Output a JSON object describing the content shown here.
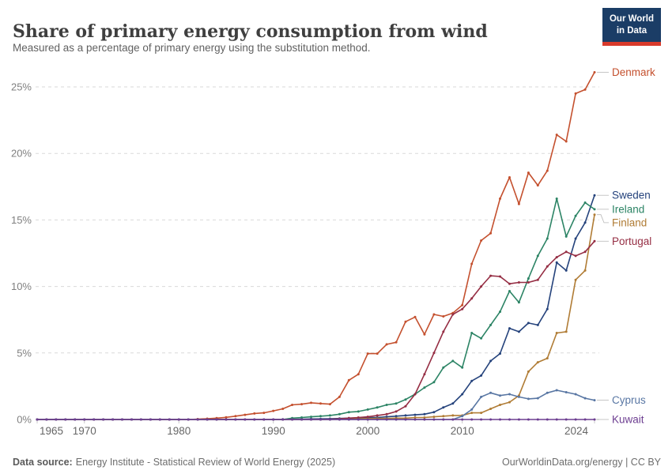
{
  "header": {
    "title": "Share of primary energy consumption from wind",
    "subtitle": "Measured as a percentage of primary energy using the substitution method.",
    "logo": {
      "line1": "Our World",
      "line2": "in Data",
      "bg_color": "#1b3d66",
      "bar_color": "#d93a2b"
    }
  },
  "footer": {
    "source_label": "Data source:",
    "source": "Energy Institute - Statistical Review of World Energy (2025)",
    "credit": "OurWorldinData.org/energy | CC BY"
  },
  "chart_data": {
    "type": "line",
    "title": "Share of primary energy consumption from wind",
    "x_start": 1965,
    "x_end": 2024,
    "x_tick_labels": [
      "1965",
      "1970",
      "1980",
      "1990",
      "2000",
      "2010",
      "2024"
    ],
    "x_tick_years": [
      1965,
      1970,
      1980,
      1990,
      2000,
      2010,
      2024
    ],
    "y_tick_labels": [
      "0%",
      "5%",
      "10%",
      "15%",
      "20%",
      "25%"
    ],
    "y_tick_values": [
      0,
      5,
      10,
      15,
      20,
      25
    ],
    "ylim": [
      0,
      26.5
    ],
    "grid": "dashed",
    "grid_color": "#d9d9d9",
    "axis_text_color": "#808080",
    "legend_position": "right-end-labels",
    "series": [
      {
        "name": "Denmark",
        "color": "#c4502e",
        "values": [
          0,
          0,
          0,
          0,
          0,
          0,
          0,
          0,
          0,
          0,
          0,
          0,
          0,
          0,
          0,
          0,
          0,
          0.03,
          0.06,
          0.1,
          0.16,
          0.25,
          0.35,
          0.45,
          0.5,
          0.65,
          0.8,
          1.1,
          1.15,
          1.25,
          1.2,
          1.15,
          1.7,
          2.95,
          3.4,
          4.95,
          4.95,
          5.65,
          5.8,
          7.35,
          7.7,
          6.4,
          7.9,
          7.75,
          8.0,
          8.6,
          11.7,
          13.45,
          14.0,
          16.6,
          18.2,
          16.2,
          18.55,
          17.6,
          18.7,
          21.4,
          20.9,
          24.5,
          24.8,
          26.1
        ]
      },
      {
        "name": "Sweden",
        "color": "#25437c",
        "values": [
          0,
          0,
          0,
          0,
          0,
          0,
          0,
          0,
          0,
          0,
          0,
          0,
          0,
          0,
          0,
          0,
          0,
          0,
          0,
          0,
          0,
          0,
          0,
          0,
          0,
          0,
          0.01,
          0.02,
          0.03,
          0.04,
          0.05,
          0.06,
          0.08,
          0.1,
          0.12,
          0.15,
          0.15,
          0.2,
          0.25,
          0.3,
          0.35,
          0.4,
          0.55,
          0.9,
          1.2,
          1.9,
          2.9,
          3.3,
          4.4,
          4.95,
          6.85,
          6.6,
          7.25,
          7.1,
          8.3,
          11.8,
          11.2,
          13.6,
          14.8,
          16.85
        ]
      },
      {
        "name": "Ireland",
        "color": "#2c8465",
        "values": [
          0,
          0,
          0,
          0,
          0,
          0,
          0,
          0,
          0,
          0,
          0,
          0,
          0,
          0,
          0,
          0,
          0,
          0,
          0,
          0,
          0,
          0,
          0,
          0,
          0,
          0,
          0,
          0.1,
          0.15,
          0.2,
          0.25,
          0.3,
          0.4,
          0.55,
          0.6,
          0.75,
          0.9,
          1.1,
          1.2,
          1.5,
          1.9,
          2.4,
          2.8,
          3.9,
          4.4,
          3.9,
          6.5,
          6.1,
          7.1,
          8.1,
          9.65,
          8.8,
          10.6,
          12.3,
          13.6,
          16.6,
          13.75,
          15.3,
          16.3,
          15.8
        ]
      },
      {
        "name": "Finland",
        "color": "#b07c35",
        "values": [
          0,
          0,
          0,
          0,
          0,
          0,
          0,
          0,
          0,
          0,
          0,
          0,
          0,
          0,
          0,
          0,
          0,
          0,
          0,
          0,
          0,
          0,
          0,
          0,
          0,
          0,
          0,
          0,
          0,
          0,
          0,
          0,
          0.02,
          0.03,
          0.05,
          0.08,
          0.08,
          0.08,
          0.1,
          0.1,
          0.15,
          0.15,
          0.2,
          0.25,
          0.3,
          0.3,
          0.5,
          0.5,
          0.8,
          1.1,
          1.3,
          1.8,
          3.6,
          4.3,
          4.6,
          6.5,
          6.6,
          10.5,
          11.2,
          15.4
        ]
      },
      {
        "name": "Portugal",
        "color": "#952d43",
        "values": [
          0,
          0,
          0,
          0,
          0,
          0,
          0,
          0,
          0,
          0,
          0,
          0,
          0,
          0,
          0,
          0,
          0,
          0,
          0,
          0,
          0,
          0,
          0,
          0,
          0,
          0,
          0,
          0,
          0,
          0,
          0,
          0.02,
          0.05,
          0.1,
          0.15,
          0.2,
          0.3,
          0.4,
          0.6,
          1.0,
          1.9,
          3.4,
          5.0,
          6.6,
          7.9,
          8.3,
          9.1,
          10.0,
          10.8,
          10.75,
          10.2,
          10.3,
          10.3,
          10.5,
          11.5,
          12.2,
          12.6,
          12.3,
          12.6,
          13.4
        ]
      },
      {
        "name": "Cyprus",
        "color": "#5876a3",
        "values": [
          0,
          0,
          0,
          0,
          0,
          0,
          0,
          0,
          0,
          0,
          0,
          0,
          0,
          0,
          0,
          0,
          0,
          0,
          0,
          0,
          0,
          0,
          0,
          0,
          0,
          0,
          0,
          0,
          0,
          0,
          0,
          0,
          0,
          0,
          0,
          0,
          0,
          0,
          0,
          0,
          0,
          0,
          0,
          0,
          0,
          0.25,
          0.75,
          1.7,
          2.0,
          1.8,
          1.9,
          1.7,
          1.55,
          1.6,
          2.0,
          2.2,
          2.05,
          1.9,
          1.6,
          1.45
        ]
      },
      {
        "name": "Kuwait",
        "color": "#6d3e91",
        "values": [
          0,
          0,
          0,
          0,
          0,
          0,
          0,
          0,
          0,
          0,
          0,
          0,
          0,
          0,
          0,
          0,
          0,
          0,
          0,
          0,
          0,
          0,
          0,
          0,
          0,
          0,
          0,
          0,
          0,
          0,
          0,
          0,
          0,
          0,
          0,
          0,
          0,
          0,
          0,
          0,
          0,
          0,
          0,
          0,
          0,
          0,
          0,
          0,
          0,
          0,
          0,
          0,
          0,
          0,
          0,
          0,
          0,
          0,
          0,
          0
        ]
      }
    ]
  }
}
